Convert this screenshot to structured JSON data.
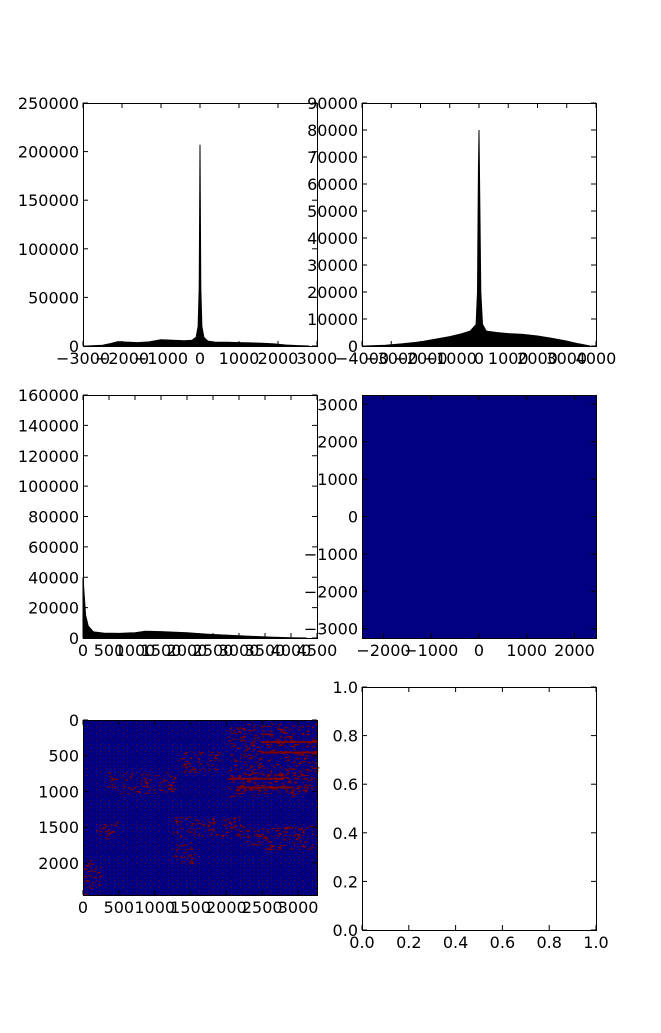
{
  "colors": {
    "background": "#ffffff",
    "histogram": "#000000",
    "image_low": "#000080",
    "image_high": "#800000"
  },
  "chart_data": [
    {
      "id": "hist-1",
      "type": "area",
      "xlim": [
        -3000,
        3000
      ],
      "ylim": [
        0,
        250000
      ],
      "xticks": [
        -3000,
        -2000,
        -1000,
        0,
        1000,
        2000,
        3000
      ],
      "xtick_labels": [
        "−3000",
        "−2000",
        "−1000",
        "0",
        "1000",
        "2000",
        "3000"
      ],
      "yticks": [
        0,
        50000,
        100000,
        150000,
        200000,
        250000
      ],
      "ytick_labels": [
        "0",
        "50000",
        "100000",
        "150000",
        "200000",
        "250000"
      ],
      "x": [
        -2900,
        -2500,
        -2300,
        -2100,
        -1900,
        -1600,
        -1300,
        -1000,
        -700,
        -400,
        -200,
        -100,
        -50,
        -20,
        0,
        20,
        50,
        100,
        200,
        400,
        700,
        1000,
        1300,
        1600,
        1900,
        2200,
        2500,
        2800
      ],
      "y": [
        0,
        800,
        2500,
        4500,
        4000,
        3500,
        4200,
        6500,
        6000,
        5500,
        6000,
        9000,
        20000,
        60000,
        207000,
        60000,
        20000,
        9000,
        5000,
        3800,
        3800,
        3500,
        3200,
        2800,
        2200,
        1000,
        400,
        0
      ]
    },
    {
      "id": "hist-2",
      "type": "area",
      "xlim": [
        -4000,
        4000
      ],
      "ylim": [
        0,
        90000
      ],
      "xticks": [
        -4000,
        -3000,
        -2000,
        -1000,
        0,
        1000,
        2000,
        3000,
        4000
      ],
      "xtick_labels": [
        "−4000",
        "−3000",
        "−2000",
        "−1000",
        "0",
        "1000",
        "2000",
        "3000",
        "4000"
      ],
      "yticks": [
        0,
        10000,
        20000,
        30000,
        40000,
        50000,
        60000,
        70000,
        80000,
        90000
      ],
      "ytick_labels": [
        "0",
        "10000",
        "20000",
        "30000",
        "40000",
        "50000",
        "60000",
        "70000",
        "80000",
        "90000"
      ],
      "x": [
        -3900,
        -3200,
        -2600,
        -2000,
        -1500,
        -1000,
        -600,
        -300,
        -100,
        -50,
        -20,
        0,
        20,
        60,
        120,
        250,
        600,
        1000,
        1500,
        2000,
        2500,
        3000,
        3400,
        3800
      ],
      "y": [
        0,
        300,
        800,
        1500,
        2500,
        3500,
        4500,
        5500,
        8000,
        20000,
        64000,
        80000,
        60000,
        20000,
        8000,
        5500,
        5000,
        4600,
        4300,
        3700,
        2800,
        1800,
        800,
        0
      ]
    },
    {
      "id": "hist-3",
      "type": "area",
      "xlim": [
        0,
        4500
      ],
      "ylim": [
        0,
        160000
      ],
      "xticks": [
        0,
        500,
        1000,
        1500,
        2000,
        2500,
        3000,
        3500,
        4000,
        4500
      ],
      "xtick_labels": [
        "0",
        "500",
        "1000",
        "1500",
        "2000",
        "2500",
        "3000",
        "3500",
        "4000",
        "4500"
      ],
      "yticks": [
        0,
        20000,
        40000,
        60000,
        80000,
        100000,
        120000,
        140000,
        160000
      ],
      "ytick_labels": [
        "0",
        "20000",
        "40000",
        "60000",
        "80000",
        "100000",
        "120000",
        "140000",
        "160000"
      ],
      "x": [
        0,
        20,
        50,
        100,
        200,
        400,
        700,
        1000,
        1200,
        1500,
        2000,
        2400,
        2800,
        3200,
        3600,
        4000,
        4300
      ],
      "y": [
        40000,
        30000,
        15000,
        8000,
        4000,
        3200,
        3000,
        3500,
        4500,
        4200,
        3500,
        2500,
        1800,
        1200,
        600,
        200,
        0
      ]
    },
    {
      "id": "image-1",
      "type": "heatmap",
      "xlim": [
        -2450,
        2450
      ],
      "ylim": [
        -3250,
        3250
      ],
      "xticks": [
        -2000,
        -1000,
        0,
        1000,
        2000
      ],
      "xtick_labels": [
        "−2000",
        "−1000",
        "0",
        "1000",
        "2000"
      ],
      "yticks": [
        -3000,
        -2000,
        -1000,
        0,
        1000,
        2000,
        3000
      ],
      "ytick_labels": [
        "−3000",
        "−2000",
        "−1000",
        "0",
        "1000",
        "2000",
        "3000"
      ]
    },
    {
      "id": "image-2",
      "type": "heatmap",
      "xlim": [
        0,
        3264
      ],
      "ylim": [
        2448,
        0
      ],
      "xticks": [
        0,
        500,
        1000,
        1500,
        2000,
        2500,
        3000
      ],
      "xtick_labels": [
        "0",
        "500",
        "1000",
        "1500",
        "2000",
        "2500",
        "3000"
      ],
      "yticks": [
        0,
        500,
        1000,
        1500,
        2000
      ],
      "ytick_labels": [
        "0",
        "500",
        "1000",
        "1500",
        "2000"
      ]
    },
    {
      "id": "empty-axes",
      "type": "line",
      "xlim": [
        0,
        1
      ],
      "ylim": [
        0,
        1
      ],
      "xticks": [
        0,
        0.2,
        0.4,
        0.6,
        0.8,
        1.0
      ],
      "xtick_labels": [
        "0.0",
        "0.2",
        "0.4",
        "0.6",
        "0.8",
        "1.0"
      ],
      "yticks": [
        0,
        0.2,
        0.4,
        0.6,
        0.8,
        1.0
      ],
      "ytick_labels": [
        "0.0",
        "0.2",
        "0.4",
        "0.6",
        "0.8",
        "1.0"
      ]
    }
  ]
}
